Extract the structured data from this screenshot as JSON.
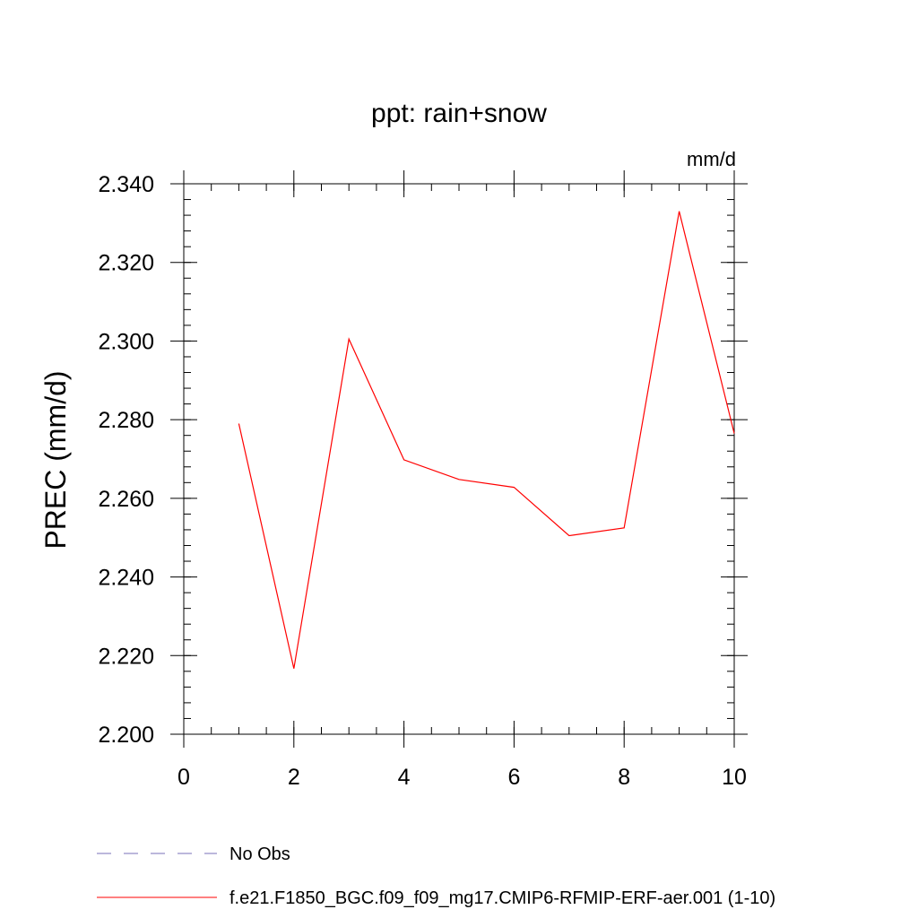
{
  "chart_data": {
    "type": "line",
    "title": "ppt: rain+snow",
    "units_label": "mm/d",
    "ylabel": "PREC  (mm/d)",
    "xlabel": "",
    "xlim": [
      0,
      10
    ],
    "ylim": [
      2.2,
      2.34
    ],
    "x_ticks": [
      0,
      2,
      4,
      6,
      8,
      10
    ],
    "x_tick_labels": [
      "0",
      "2",
      "4",
      "6",
      "8",
      "10"
    ],
    "y_ticks": [
      2.2,
      2.22,
      2.24,
      2.26,
      2.28,
      2.3,
      2.32,
      2.34
    ],
    "y_tick_labels": [
      "2.200",
      "2.220",
      "2.240",
      "2.260",
      "2.280",
      "2.300",
      "2.320",
      "2.340"
    ],
    "grid": false,
    "legend_position": "bottom",
    "series": [
      {
        "name": "f.e21.F1850_BGC.f09_f09_mg17.CMIP6-RFMIP-ERF-aer.001 (1-10)",
        "color": "#ff0000",
        "dash": "solid",
        "x": [
          1,
          2,
          3,
          4,
          5,
          6,
          7,
          8,
          9,
          10
        ],
        "y": [
          2.279,
          2.2167,
          2.3005,
          2.2698,
          2.2648,
          2.2628,
          2.2505,
          2.2525,
          2.333,
          2.2765
        ]
      }
    ],
    "legend": [
      {
        "label": "No Obs",
        "color": "#7a6fb8",
        "dash": "dashed"
      },
      {
        "label": "f.e21.F1850_BGC.f09_f09_mg17.CMIP6-RFMIP-ERF-aer.001 (1-10)",
        "color": "#ff0000",
        "dash": "solid"
      }
    ]
  }
}
